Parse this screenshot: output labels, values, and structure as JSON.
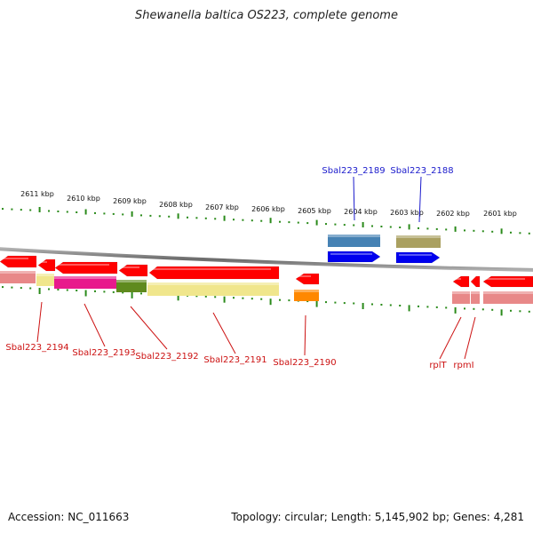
{
  "title": "Shewanella baltica OS223, complete genome",
  "colors": {
    "forward_label": "#1a1acc",
    "reverse_label": "#cc1111",
    "tick": "#2a8a1a",
    "backbone": "#808080"
  },
  "scale": {
    "unit": "kbp",
    "labels": [
      "2611 kbp",
      "2610 kbp",
      "2609 kbp",
      "2608 kbp",
      "2607 kbp",
      "2606 kbp",
      "2605 kbp",
      "2604 kbp",
      "2603 kbp",
      "2602 kbp",
      "2601 kbp"
    ]
  },
  "genes": [
    {
      "label": "",
      "strand": "reverse",
      "color": "#ff0000"
    },
    {
      "label": "Sbal223_2194",
      "strand": "reverse",
      "color": "#ff0000"
    },
    {
      "label": "Sbal223_2193",
      "strand": "reverse",
      "color": "#ff0000"
    },
    {
      "label": "Sbal223_2192",
      "strand": "reverse",
      "color": "#ff0000"
    },
    {
      "label": "Sbal223_2191",
      "strand": "reverse",
      "color": "#ff0000"
    },
    {
      "label": "Sbal223_2190",
      "strand": "reverse",
      "color": "#ff0000"
    },
    {
      "label": "Sbal223_2189",
      "strand": "forward",
      "color": "#0000ee"
    },
    {
      "label": "Sbal223_2188",
      "strand": "forward",
      "color": "#0000ee"
    },
    {
      "label": "rplT",
      "strand": "reverse",
      "color": "#ff0000"
    },
    {
      "label": "rpmI",
      "strand": "reverse",
      "color": "#ff0000"
    },
    {
      "label": "",
      "strand": "reverse",
      "color": "#ff0000"
    }
  ],
  "cog_bands": [
    {
      "color": "#e88888"
    },
    {
      "color": "#f0e68c"
    },
    {
      "color": "#e8198c"
    },
    {
      "color": "#5f8a1e"
    },
    {
      "color": "#f0e68c"
    },
    {
      "color": "#ff8800"
    },
    {
      "color": "#4682b4"
    },
    {
      "color": "#aaa060"
    },
    {
      "color": "#e88888"
    },
    {
      "color": "#e88888"
    },
    {
      "color": "#e88888"
    }
  ],
  "footer": {
    "accession": "Accession: NC_011663",
    "topology": "Topology: circular; Length: 5,145,902 bp; Genes: 4,281"
  }
}
